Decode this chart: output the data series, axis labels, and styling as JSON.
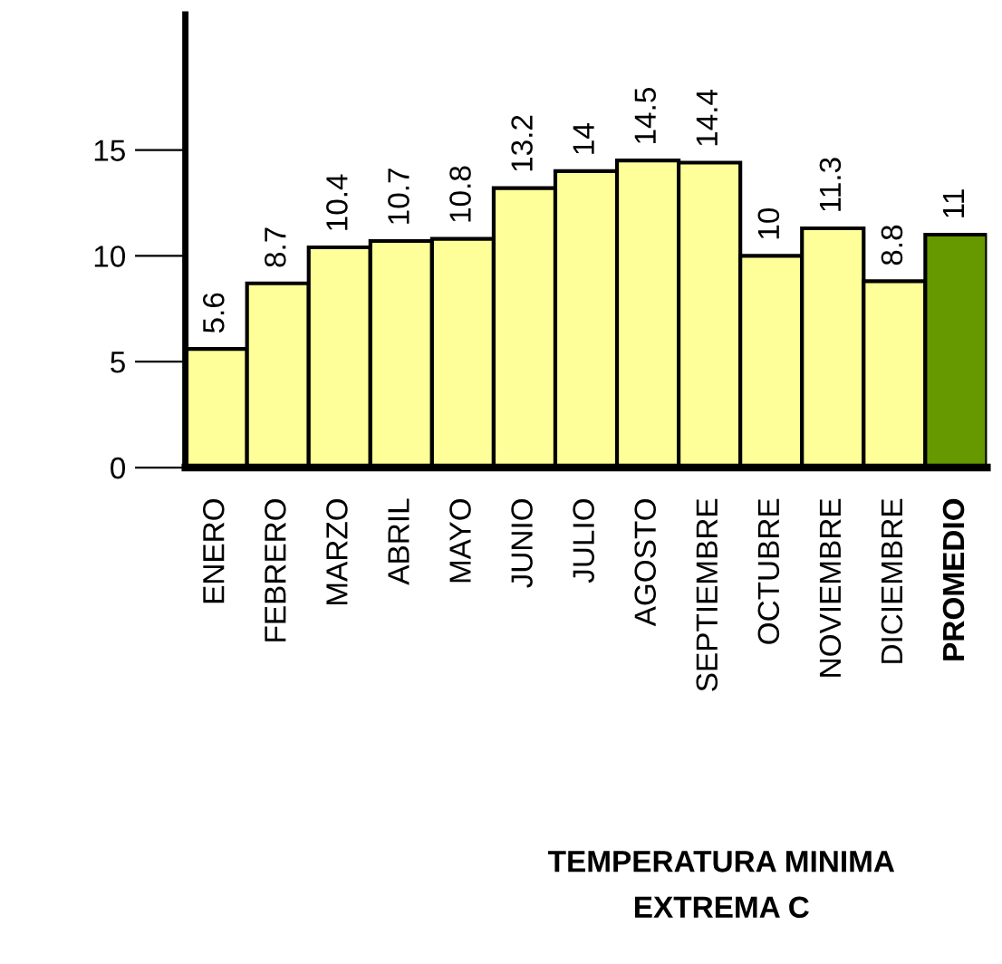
{
  "chart_data": {
    "type": "bar",
    "title": "TEMPERATURA MINIMA\nEXTREMA C",
    "categories": [
      "ENERO",
      "FEBRERO",
      "MARZO",
      "ABRIL",
      "MAYO",
      "JUNIO",
      "JULIO",
      "AGOSTO",
      "SEPTIEMBRE",
      "OCTUBRE",
      "NOVIEMBRE",
      "DICIEMBRE",
      "PROMEDIO"
    ],
    "values": [
      5.6,
      8.7,
      10.4,
      10.7,
      10.8,
      13.2,
      14,
      14.5,
      14.4,
      10,
      11.3,
      8.8,
      11
    ],
    "data_labels": true,
    "colors": [
      "#ffff99",
      "#ffff99",
      "#ffff99",
      "#ffff99",
      "#ffff99",
      "#ffff99",
      "#ffff99",
      "#ffff99",
      "#ffff99",
      "#ffff99",
      "#ffff99",
      "#ffff99",
      "#669900"
    ],
    "ylim": [
      0,
      21.4
    ],
    "yticks": [
      0,
      5,
      10,
      15
    ],
    "grid": false,
    "legend": false
  }
}
